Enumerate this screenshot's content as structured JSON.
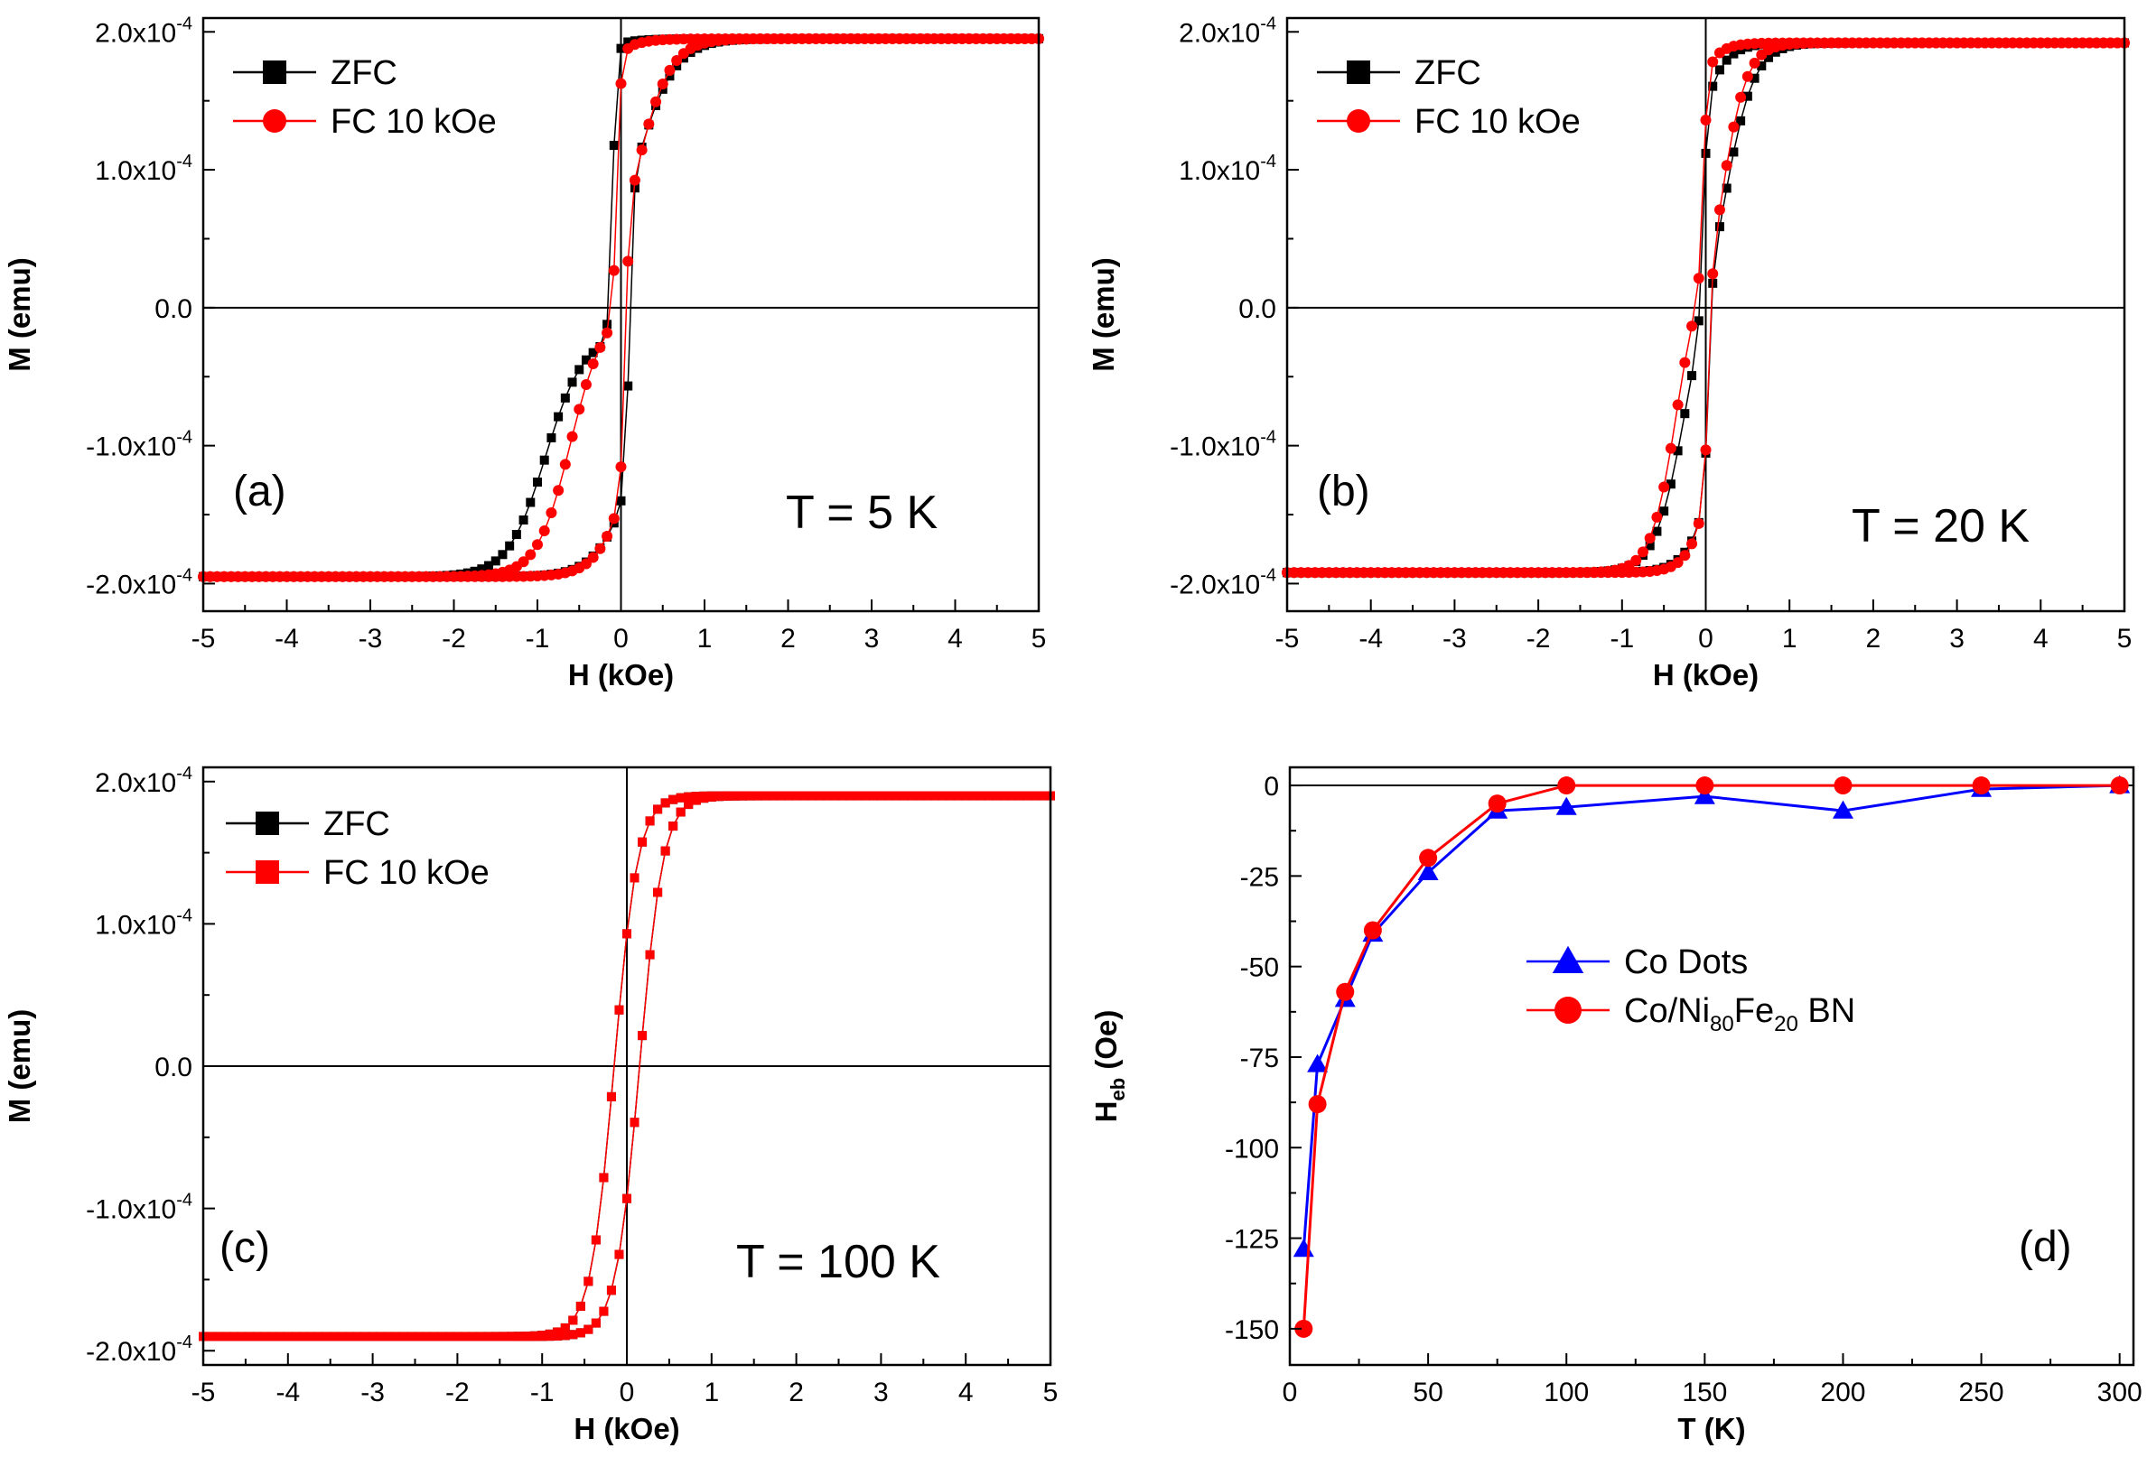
{
  "chart_data": [
    {
      "id": "a",
      "type": "scatter",
      "panel_label": "(a)",
      "annotation": "T = 5 K",
      "xlabel": "H (kOe)",
      "ylabel": "M (emu)",
      "xlim": [
        -5,
        5
      ],
      "ylim": [
        -0.00022,
        0.00021
      ],
      "xticks": [
        -5,
        -4,
        -3,
        -2,
        -1,
        0,
        1,
        2,
        3,
        4,
        5
      ],
      "xtick_labels": [
        "-5",
        "-4",
        "-3",
        "-2",
        "-1",
        "0",
        "1",
        "2",
        "3",
        "4",
        "5"
      ],
      "yticks": [
        -0.0002,
        -0.0001,
        0,
        0.0001,
        0.0002
      ],
      "ytick_labels": [
        "-2.0x10",
        "-1.0x10",
        "0.0",
        "1.0x10",
        "2.0x10"
      ],
      "ytick_exponent": "-4",
      "loop_params": [
        {
          "name": "ZFC",
          "color": "#000000",
          "marker": "square",
          "ms": 0.000195,
          "hc_left": -0.9,
          "hc_right": 0.2,
          "minor_coercivity": 0.1,
          "minor_weight": 0.55,
          "width": 0.45,
          "points": 120
        },
        {
          "name": "FC 10 kOe",
          "color": "#ff0000",
          "marker": "circle",
          "ms": 0.000195,
          "hc_left": -0.6,
          "hc_right": 0.18,
          "minor_coercivity": 0.05,
          "minor_weight": 0.5,
          "width": 0.4,
          "points": 120
        }
      ],
      "legend": [
        "ZFC",
        "FC 10 kOe"
      ]
    },
    {
      "id": "b",
      "type": "scatter",
      "panel_label": "(b)",
      "annotation": "T = 20 K",
      "xlabel": "H (kOe)",
      "ylabel": "M (emu)",
      "xlim": [
        -5,
        5
      ],
      "ylim": [
        -0.00022,
        0.00021
      ],
      "xticks": [
        -5,
        -4,
        -3,
        -2,
        -1,
        0,
        1,
        2,
        3,
        4,
        5
      ],
      "xtick_labels": [
        "-5",
        "-4",
        "-3",
        "-2",
        "-1",
        "0",
        "1",
        "2",
        "3",
        "4",
        "5"
      ],
      "yticks": [
        -0.0002,
        -0.0001,
        0,
        0.0001,
        0.0002
      ],
      "ytick_labels": [
        "-2.0x10",
        "-1.0x10",
        "0.0",
        "1.0x10",
        "2.0x10"
      ],
      "ytick_exponent": "-4",
      "loop_params": [
        {
          "name": "ZFC",
          "color": "#000000",
          "marker": "square",
          "ms": 0.000192,
          "hc_left": -0.25,
          "hc_right": 0.22,
          "minor_coercivity": 0.03,
          "minor_weight": 0.4,
          "width": 0.35,
          "points": 120
        },
        {
          "name": "FC 10 kOe",
          "color": "#ff0000",
          "marker": "circle",
          "ms": 0.000192,
          "hc_left": -0.35,
          "hc_right": 0.18,
          "minor_coercivity": 0.03,
          "minor_weight": 0.4,
          "width": 0.3,
          "points": 120
        }
      ],
      "legend": [
        "ZFC",
        "FC 10 kOe"
      ]
    },
    {
      "id": "c",
      "type": "scatter",
      "panel_label": "(c)",
      "annotation": "T = 100 K",
      "xlabel": "H (kOe)",
      "ylabel": "M (emu)",
      "xlim": [
        -5,
        5
      ],
      "ylim": [
        -0.00021,
        0.00021
      ],
      "xticks": [
        -5,
        -4,
        -3,
        -2,
        -1,
        0,
        1,
        2,
        3,
        4,
        5
      ],
      "xtick_labels": [
        "-5",
        "-4",
        "-3",
        "-2",
        "-1",
        "0",
        "1",
        "2",
        "3",
        "4",
        "5"
      ],
      "yticks": [
        -0.0002,
        -0.0001,
        0,
        0.0001,
        0.0002
      ],
      "ytick_labels": [
        "-2.0x10",
        "-1.0x10",
        "0.0",
        "1.0x10",
        "2.0x10"
      ],
      "ytick_exponent": "-4",
      "loop_params": [
        {
          "name": "ZFC",
          "color": "#000000",
          "marker": "square",
          "ms": 0.00019,
          "hc_left": -0.15,
          "hc_right": 0.15,
          "minor_coercivity": 0.0,
          "minor_weight": 0.0,
          "width": 0.28,
          "points": 110
        },
        {
          "name": "FC 10 kOe",
          "color": "#ff0000",
          "marker": "square",
          "ms": 0.00019,
          "hc_left": -0.15,
          "hc_right": 0.15,
          "minor_coercivity": 0.0,
          "minor_weight": 0.0,
          "width": 0.28,
          "points": 110
        }
      ],
      "legend": [
        "ZFC",
        "FC 10 kOe"
      ]
    },
    {
      "id": "d",
      "type": "line",
      "panel_label": "(d)",
      "xlabel": "T (K)",
      "ylabel_main": "H",
      "ylabel_sub": "eb",
      "ylabel_rest": " (Oe)",
      "xlim": [
        0,
        305
      ],
      "ylim": [
        -160,
        5
      ],
      "xticks": [
        0,
        50,
        100,
        150,
        200,
        250,
        300
      ],
      "xtick_labels": [
        "0",
        "50",
        "100",
        "150",
        "200",
        "250",
        "300"
      ],
      "yticks": [
        0,
        -25,
        -50,
        -75,
        -100,
        -125,
        -150
      ],
      "ytick_labels": [
        "0",
        "-25",
        "-50",
        "-75",
        "-100",
        "-125",
        "-150"
      ],
      "series": [
        {
          "name": "Co Dots",
          "color": "#0000ff",
          "marker": "triangle",
          "x": [
            5,
            10,
            20,
            30,
            50,
            75,
            100,
            150,
            200,
            250,
            300
          ],
          "y": [
            -128,
            -77,
            -59,
            -41,
            -24,
            -7,
            -6,
            -3,
            -7,
            -1,
            0
          ]
        },
        {
          "name": "Co/Ni80Fe20 BN",
          "color": "#ff0000",
          "marker": "circle",
          "x": [
            5,
            10,
            20,
            30,
            50,
            75,
            100,
            150,
            200,
            250,
            300
          ],
          "y": [
            -150,
            -88,
            -57,
            -40,
            -20,
            -5,
            0,
            0,
            0,
            0,
            0
          ]
        }
      ],
      "legend": [
        {
          "text": "Co Dots"
        },
        {
          "parts": [
            "Co/Ni",
            "80",
            "Fe",
            "20",
            " BN"
          ]
        }
      ]
    }
  ]
}
